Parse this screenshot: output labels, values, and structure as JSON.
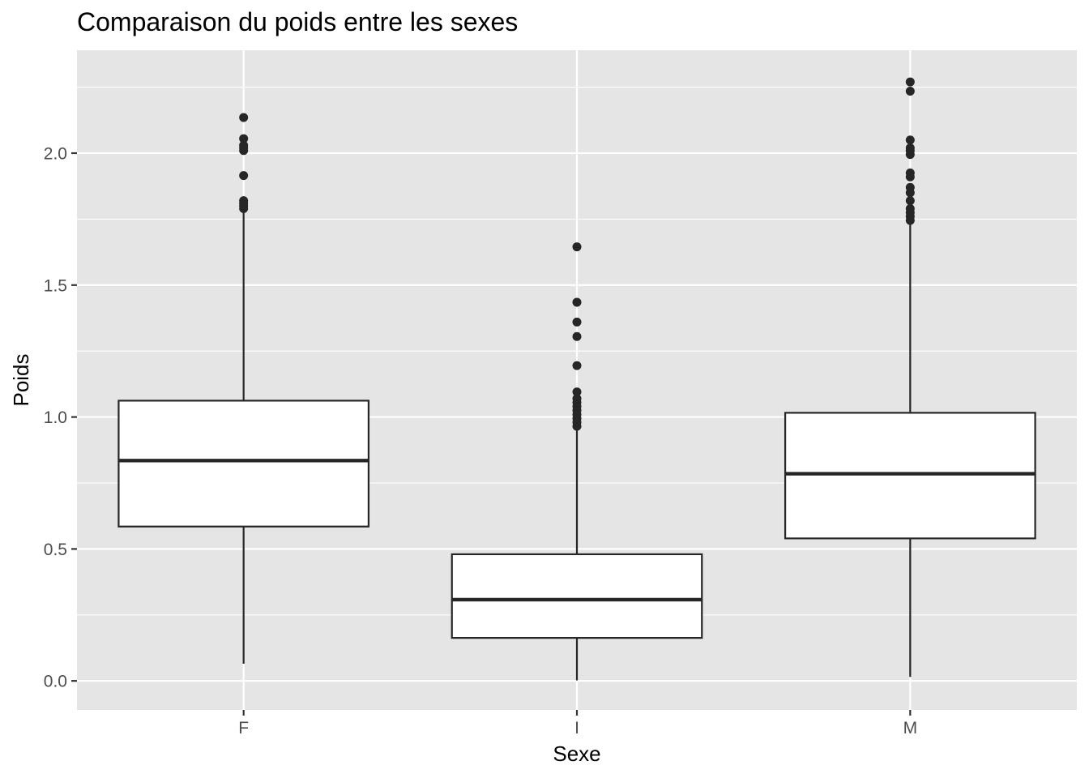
{
  "chart_data": {
    "type": "boxplot",
    "title": "Comparaison du poids entre les sexes",
    "xlabel": "Sexe",
    "ylabel": "Poids",
    "categories": [
      "F",
      "I",
      "M"
    ],
    "ylim": [
      -0.11,
      2.39
    ],
    "yticks": [
      0.0,
      0.5,
      1.0,
      1.5,
      2.0
    ],
    "ytick_labels": [
      "0.0",
      "0.5",
      "1.0",
      "1.5",
      "2.0"
    ],
    "grid": true,
    "panel_background": "#e5e5e5",
    "box_fill": "#ffffff",
    "line_color": "#262626",
    "boxes": [
      {
        "category": "F",
        "whisker_low": 0.065,
        "q1": 0.585,
        "median": 0.835,
        "q3": 1.062,
        "whisker_high": 1.78,
        "outliers": [
          1.79,
          1.8,
          1.81,
          1.82,
          1.915,
          2.01,
          2.02,
          2.03,
          2.055,
          2.135
        ]
      },
      {
        "category": "I",
        "whisker_low": 0.002,
        "q1": 0.163,
        "median": 0.308,
        "q3": 0.48,
        "whisker_high": 0.955,
        "outliers": [
          0.965,
          0.98,
          0.995,
          1.01,
          1.025,
          1.04,
          1.055,
          1.07,
          1.095,
          1.195,
          1.305,
          1.36,
          1.435,
          1.645
        ]
      },
      {
        "category": "M",
        "whisker_low": 0.015,
        "q1": 0.54,
        "median": 0.785,
        "q3": 1.016,
        "whisker_high": 1.74,
        "outliers": [
          1.745,
          1.76,
          1.775,
          1.79,
          1.82,
          1.85,
          1.87,
          1.91,
          1.925,
          1.995,
          2.01,
          2.02,
          2.05,
          2.235,
          2.27
        ]
      }
    ]
  }
}
